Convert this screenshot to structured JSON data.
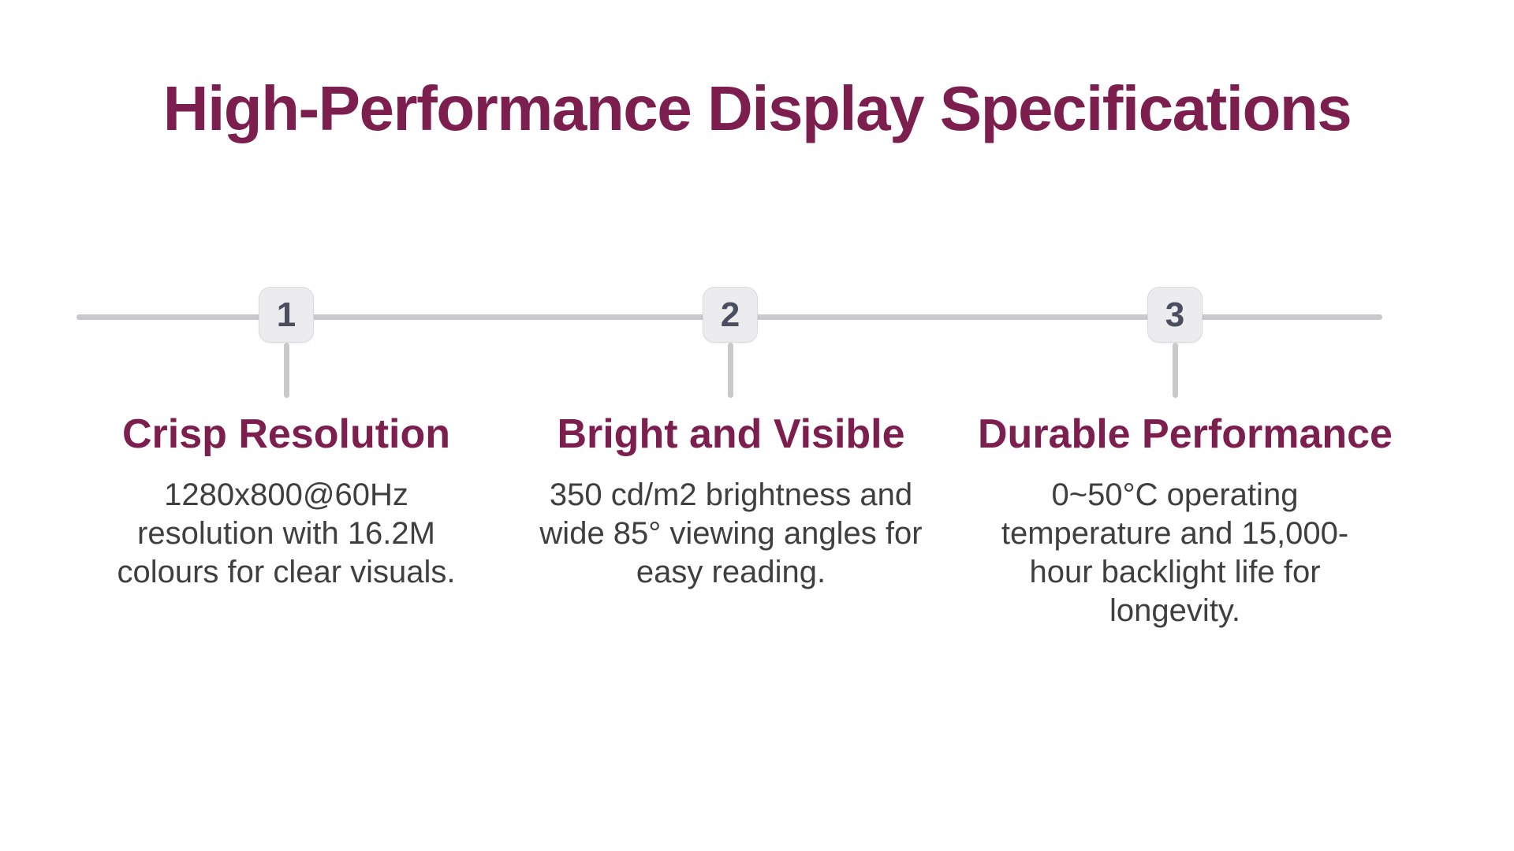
{
  "title": "High-Performance Display Specifications",
  "theme": {
    "background": "#FFFFFF",
    "accent": "#7D1F4E",
    "body_text": "#3F3F3F",
    "line_gray": "#C9C9CC",
    "badge_bg": "#ECECEE",
    "badge_border": "#DBDBDF",
    "badge_number": "#4A4E5F"
  },
  "steps": [
    {
      "number": "1",
      "heading": "Crisp Resolution",
      "lines": [
        "1280x800@60Hz",
        "resolution with 16.2M",
        "colours for clear visuals."
      ]
    },
    {
      "number": "2",
      "heading": "Bright and Visible",
      "lines": [
        "350 cd/m2 brightness and",
        "wide 85° viewing angles for",
        "easy reading."
      ]
    },
    {
      "number": "3",
      "heading": "Durable Performance",
      "lines": [
        "0~50°C operating",
        "temperature and 15,000-",
        "hour backlight life for",
        "longevity."
      ]
    }
  ]
}
